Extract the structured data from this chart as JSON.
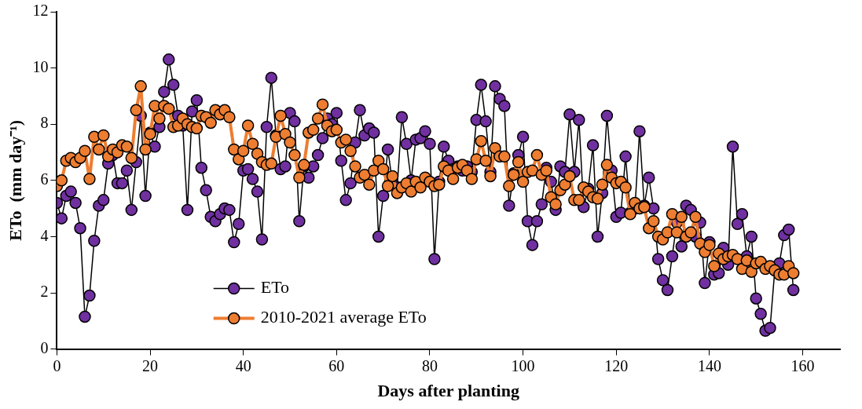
{
  "chart_data": {
    "type": "line",
    "xlabel": "Days after planting",
    "ylabel": "ETo  (mm day⁻¹)",
    "x": [
      0,
      1,
      2,
      3,
      4,
      5,
      6,
      7,
      8,
      9,
      10,
      11,
      12,
      13,
      14,
      15,
      16,
      17,
      18,
      19,
      20,
      21,
      22,
      23,
      24,
      25,
      26,
      27,
      28,
      29,
      30,
      31,
      32,
      33,
      34,
      35,
      36,
      37,
      38,
      39,
      40,
      41,
      42,
      43,
      44,
      45,
      46,
      47,
      48,
      49,
      50,
      51,
      52,
      53,
      54,
      55,
      56,
      57,
      58,
      59,
      60,
      61,
      62,
      63,
      64,
      65,
      66,
      67,
      68,
      69,
      70,
      71,
      72,
      73,
      74,
      75,
      76,
      77,
      78,
      79,
      80,
      81,
      82,
      83,
      84,
      85,
      86,
      87,
      88,
      89,
      90,
      91,
      92,
      93,
      94,
      95,
      96,
      97,
      98,
      99,
      100,
      101,
      102,
      103,
      104,
      105,
      106,
      107,
      108,
      109,
      110,
      111,
      112,
      113,
      114,
      115,
      116,
      117,
      118,
      119,
      120,
      121,
      122,
      123,
      124,
      125,
      126,
      127,
      128,
      129,
      130,
      131,
      132,
      133,
      134,
      135,
      136,
      137,
      138,
      139,
      140,
      141,
      142,
      143,
      144,
      145,
      146,
      147,
      148,
      149,
      150,
      151,
      152,
      153,
      154,
      155,
      156,
      157,
      158
    ],
    "series": [
      {
        "name": "ETo",
        "color": "#7030a0",
        "values": [
          5.2,
          4.65,
          5.45,
          5.6,
          5.2,
          4.3,
          1.15,
          1.9,
          3.85,
          5.1,
          5.3,
          6.6,
          6.9,
          5.9,
          5.9,
          6.35,
          4.95,
          6.65,
          8.3,
          5.45,
          7.7,
          7.2,
          7.9,
          9.15,
          10.3,
          9.4,
          8.3,
          7.95,
          4.95,
          8.45,
          8.85,
          6.45,
          5.65,
          4.7,
          4.55,
          4.8,
          5.0,
          4.95,
          3.8,
          4.45,
          6.35,
          6.4,
          6.05,
          5.6,
          3.9,
          7.9,
          9.65,
          7.6,
          6.4,
          6.5,
          8.4,
          8.1,
          4.55,
          6.5,
          6.1,
          6.5,
          6.9,
          7.5,
          8.2,
          8.0,
          8.4,
          6.7,
          5.3,
          5.9,
          7.35,
          8.5,
          7.6,
          7.85,
          7.7,
          4.0,
          5.45,
          7.1,
          5.9,
          5.75,
          8.25,
          7.3,
          6.0,
          7.45,
          7.5,
          7.75,
          7.3,
          3.2,
          5.95,
          7.2,
          6.7,
          6.4,
          6.5,
          6.35,
          6.5,
          6.3,
          8.15,
          9.4,
          8.1,
          6.3,
          9.35,
          8.9,
          8.65,
          5.1,
          6.25,
          6.9,
          7.55,
          4.55,
          3.7,
          4.55,
          5.15,
          6.45,
          5.95,
          4.95,
          6.5,
          6.3,
          8.35,
          6.3,
          8.15,
          5.05,
          5.7,
          7.25,
          4.0,
          5.55,
          8.3,
          6.35,
          4.7,
          4.85,
          6.85,
          4.85,
          5.0,
          7.75,
          5.1,
          6.1,
          5.0,
          3.2,
          2.45,
          2.1,
          3.3,
          4.5,
          3.65,
          5.1,
          4.95,
          4.0,
          4.5,
          2.35,
          3.8,
          2.65,
          2.7,
          3.6,
          3.0,
          7.2,
          4.45,
          4.8,
          3.3,
          4.0,
          1.8,
          1.25,
          0.65,
          0.75,
          2.8,
          3.05,
          4.05,
          4.25,
          2.1
        ]
      },
      {
        "name": "2010-2021 average ETo",
        "color": "#ed7d31",
        "values": [
          5.8,
          6.0,
          6.7,
          6.8,
          6.65,
          6.8,
          7.05,
          6.05,
          7.55,
          7.1,
          7.6,
          6.85,
          7.1,
          7.0,
          7.25,
          7.2,
          6.8,
          8.5,
          9.35,
          7.1,
          7.65,
          8.65,
          8.2,
          8.65,
          8.55,
          7.9,
          7.95,
          8.2,
          8.0,
          7.9,
          7.85,
          8.3,
          8.25,
          8.05,
          8.5,
          8.35,
          8.5,
          8.25,
          7.1,
          6.75,
          7.05,
          7.95,
          7.3,
          6.95,
          6.65,
          6.55,
          6.6,
          7.55,
          8.3,
          7.65,
          7.35,
          6.9,
          6.1,
          6.55,
          7.7,
          7.8,
          8.2,
          8.7,
          7.95,
          7.75,
          7.8,
          7.35,
          7.45,
          7.05,
          6.5,
          6.1,
          6.2,
          5.85,
          6.35,
          6.7,
          6.4,
          5.8,
          6.15,
          5.55,
          5.75,
          5.9,
          5.6,
          5.95,
          5.75,
          6.1,
          5.95,
          5.8,
          5.85,
          6.5,
          6.35,
          6.05,
          6.45,
          6.55,
          6.35,
          6.05,
          6.75,
          7.4,
          6.7,
          6.15,
          7.15,
          6.85,
          6.85,
          5.8,
          6.2,
          6.65,
          5.95,
          6.3,
          6.35,
          6.9,
          6.2,
          6.35,
          5.4,
          5.15,
          5.65,
          5.85,
          6.15,
          5.3,
          5.3,
          5.75,
          5.6,
          5.4,
          5.35,
          5.85,
          6.55,
          6.1,
          5.9,
          5.95,
          5.75,
          4.8,
          5.2,
          5.0,
          5.05,
          4.3,
          4.55,
          4.0,
          3.9,
          4.15,
          4.8,
          4.15,
          4.7,
          4.0,
          4.15,
          4.7,
          3.75,
          3.45,
          3.7,
          2.95,
          3.4,
          3.2,
          3.3,
          3.35,
          3.2,
          2.85,
          3.15,
          2.75,
          3.05,
          3.1,
          2.85,
          2.95,
          2.8,
          2.65,
          2.65,
          2.95,
          2.7
        ]
      }
    ],
    "xlim": [
      0,
      168
    ],
    "xticks": [
      0,
      20,
      40,
      60,
      80,
      100,
      120,
      140,
      160
    ],
    "ylim": [
      0,
      12
    ],
    "yticks": [
      0,
      2,
      4,
      6,
      8,
      10,
      12
    ],
    "grid": false,
    "legend": "bottom left",
    "marker": "circle",
    "line_style": "solid"
  }
}
